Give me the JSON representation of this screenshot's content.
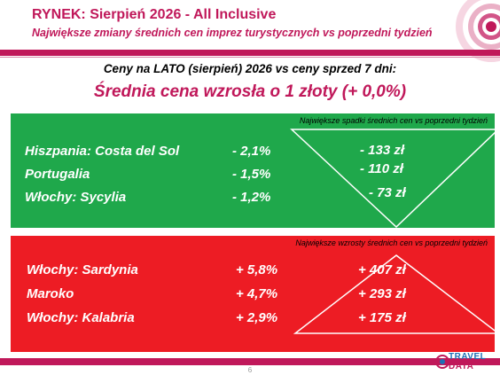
{
  "header": {
    "title": "RYNEK: Sierpień 2026 - All Inclusive",
    "subtitle": "Największe zmiany średnich cen imprez turystycznych vs poprzedni tydzień"
  },
  "summary": {
    "compare_line": "Ceny na LATO (sierpień) 2026 vs ceny sprzed 7 dni:",
    "headline": "Średnia cena wzrosła o 1 złoty (+ 0,0%)"
  },
  "decreases": {
    "caption": "Największe spadki średnich cen vs poprzedni tydzień",
    "color": "#1fa84b",
    "rows": [
      {
        "name": "Hiszpania: Costa del Sol",
        "pct": "- 2,1%",
        "amount": "- 133 zł"
      },
      {
        "name": "Portugalia",
        "pct": "- 1,5%",
        "amount": "- 110 zł"
      },
      {
        "name": "Włochy: Sycylia",
        "pct": "- 1,2%",
        "amount": "- 73 zł"
      }
    ]
  },
  "increases": {
    "caption": "Największe wzrosty średnich cen vs poprzedni tydzień",
    "color": "#ed1c24",
    "rows": [
      {
        "name": "Włochy: Sardynia",
        "pct": "+ 5,8%",
        "amount": "+ 407 zł"
      },
      {
        "name": "Maroko",
        "pct": "+ 4,7%",
        "amount": "+ 293 zł"
      },
      {
        "name": "Włochy: Kalabria",
        "pct": "+ 2,9%",
        "amount": "+ 175 zł"
      }
    ]
  },
  "footer": {
    "page_number": "6",
    "logo_line1": "TRAVEL",
    "logo_line2": "DATA"
  },
  "colors": {
    "accent": "#c0185a",
    "green_panel": "#1fa84b",
    "red_panel": "#ed1c24"
  },
  "icons": [
    "concentric-circles-decoration",
    "travel-data-logo"
  ]
}
